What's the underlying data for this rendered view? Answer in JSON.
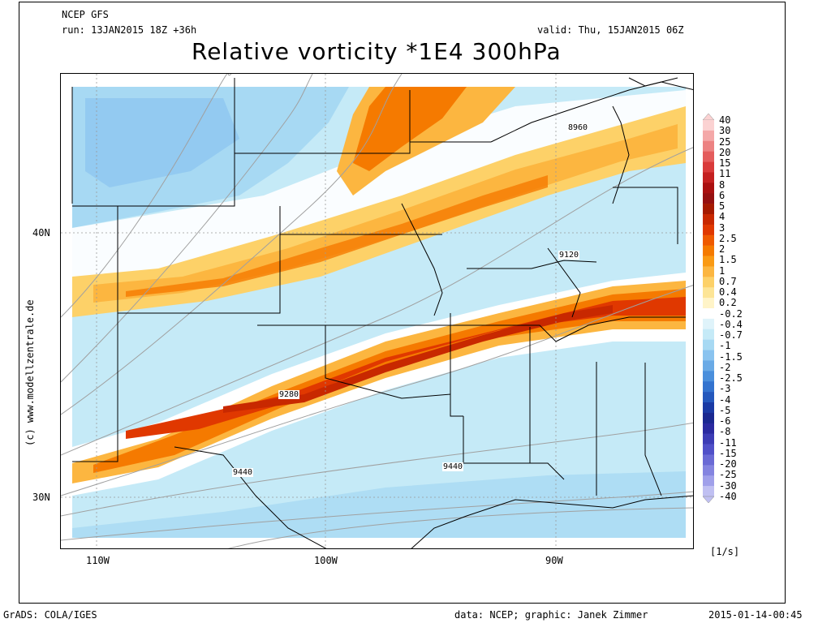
{
  "header": {
    "model": "NCEP GFS",
    "run": "run: 13JAN2015 18Z +36h",
    "valid": "valid: Thu, 15JAN2015 06Z",
    "title": "Relative vorticity *1E4 300hPa"
  },
  "watermark": "(c) www.modellzentrale.de",
  "map": {
    "lon_labels": [
      "110W",
      "100W",
      "90W"
    ],
    "lat_labels": [
      "40N",
      "30N"
    ],
    "contour_labels": [
      "8960",
      "9120",
      "9280",
      "9440",
      "9440"
    ],
    "unit_label": "[1/s]"
  },
  "legend": {
    "labels": [
      "40",
      "30",
      "25",
      "20",
      "15",
      "11",
      "8",
      "6",
      "5",
      "4",
      "3",
      "2.5",
      "2",
      "1.5",
      "1",
      "0.7",
      "0.4",
      "0.2",
      "-0.2",
      "-0.4",
      "-0.7",
      "-1",
      "-1.5",
      "-2",
      "-2.5",
      "-3",
      "-4",
      "-5",
      "-6",
      "-8",
      "-11",
      "-15",
      "-20",
      "-25",
      "-30",
      "-40"
    ],
    "colors": [
      "#fbd2d2",
      "#f4a8a8",
      "#ec8282",
      "#e45c5c",
      "#d93a3a",
      "#c42020",
      "#aa1010",
      "#951010",
      "#a51a00",
      "#c82800",
      "#e03800",
      "#ef5a00",
      "#f57a00",
      "#fa9a14",
      "#fcb640",
      "#fdd168",
      "#fde596",
      "#fff4c8",
      "#ffffff",
      "#dff3fa",
      "#c5eaf7",
      "#a7d9f3",
      "#8ac3ef",
      "#6aaae6",
      "#4a8fdc",
      "#3373cf",
      "#2458bd",
      "#1a3aa5",
      "#1a2890",
      "#2a2aa0",
      "#3c3cb5",
      "#5050c8",
      "#6a6ad5",
      "#8484e0",
      "#a0a0ea",
      "#c0c0f2"
    ]
  },
  "footer": {
    "left": "GrADS: COLA/IGES",
    "center": "data: NCEP; graphic: Janek Zimmer",
    "right": "2015-01-14-00:45"
  }
}
